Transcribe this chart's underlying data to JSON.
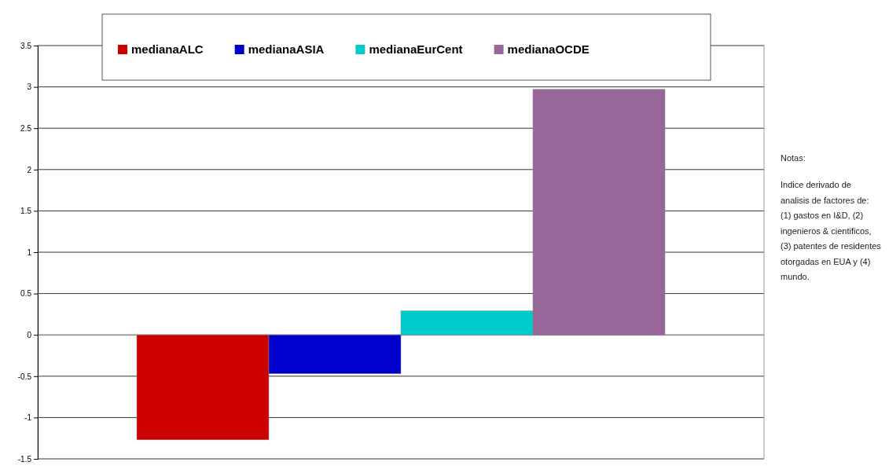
{
  "chart_data": {
    "type": "bar",
    "categories": [
      null,
      null,
      null,
      null
    ],
    "series": [
      {
        "name": "medianaALC",
        "color": "#cc0000",
        "values": [
          -1.27,
          null,
          null,
          null
        ]
      },
      {
        "name": "medianaASIA",
        "color": "#0000cc",
        "values": [
          null,
          -0.47,
          null,
          null
        ]
      },
      {
        "name": "medianaEurCent",
        "color": "#00cccc",
        "values": [
          null,
          null,
          0.29,
          null
        ]
      },
      {
        "name": "medianaOCDE",
        "color": "#996699",
        "values": [
          null,
          null,
          null,
          2.97
        ]
      }
    ],
    "ylim": [
      -1.5,
      3.5
    ],
    "yticks": [
      {
        "value": -1.5,
        "label": "-1.5"
      },
      -1,
      {
        "value": -0.5,
        "label": "-0.5"
      },
      0,
      0.5,
      1,
      1.5,
      2,
      2.5,
      3,
      3.5
    ],
    "grid": "y",
    "legend": "top",
    "annotations": [
      "Notas:",
      "Indice derivado de analisis de factores de: (1) gastos en I&D, (2) ingenieros & cientificos, (3) patentes de residentes otorgadas en EUA y (4) mundo."
    ]
  }
}
